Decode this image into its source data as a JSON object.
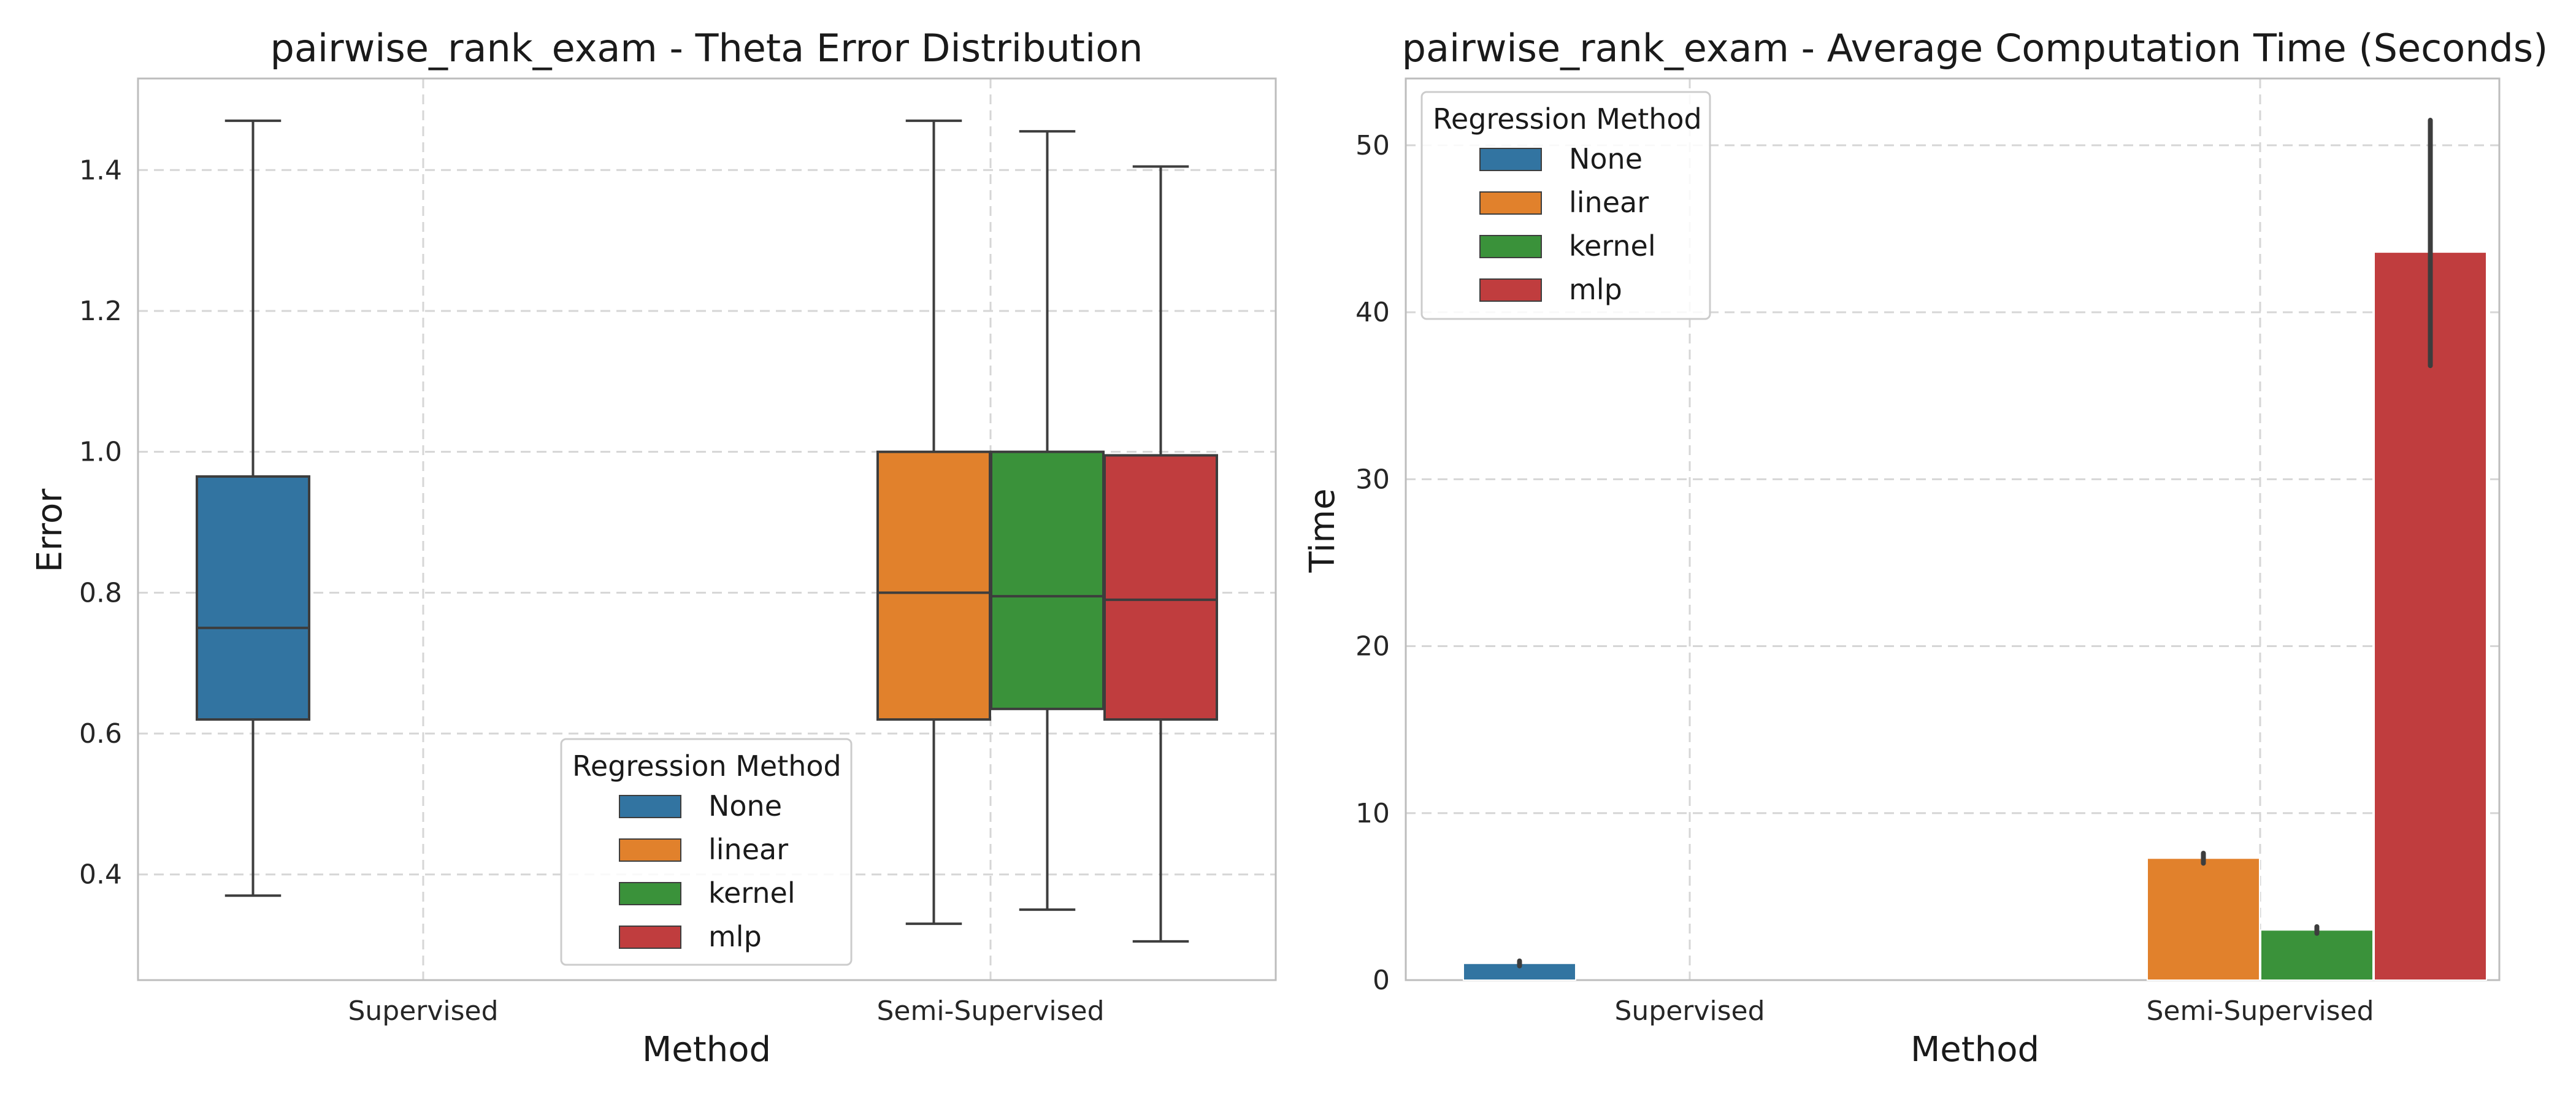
{
  "chart_data": [
    {
      "type": "box",
      "title": "pairwise_rank_exam - Theta Error Distribution",
      "xlabel": "Method",
      "ylabel": "Error",
      "ylim": [
        0.25,
        1.53
      ],
      "yticks": [
        "0.4",
        "0.6",
        "0.8",
        "1.0",
        "1.2",
        "1.4"
      ],
      "categories": [
        "Supervised",
        "Semi-Supervised"
      ],
      "grid": true,
      "legend": {
        "title": "Regression Method",
        "placement": "lower-center",
        "entries": [
          "None",
          "linear",
          "kernel",
          "mlp"
        ]
      },
      "series": [
        {
          "name": "None",
          "color": "#3274a1",
          "values": [
            {
              "category": "Supervised",
              "min": 0.37,
              "q1": 0.62,
              "median": 0.75,
              "q3": 0.965,
              "max": 1.47
            }
          ]
        },
        {
          "name": "linear",
          "color": "#e1812c",
          "values": [
            {
              "category": "Semi-Supervised",
              "min": 0.33,
              "q1": 0.62,
              "median": 0.8,
              "q3": 1.0,
              "max": 1.47
            }
          ]
        },
        {
          "name": "kernel",
          "color": "#3a923a",
          "values": [
            {
              "category": "Semi-Supervised",
              "min": 0.35,
              "q1": 0.635,
              "median": 0.795,
              "q3": 1.0,
              "max": 1.455
            }
          ]
        },
        {
          "name": "mlp",
          "color": "#c03d3e",
          "values": [
            {
              "category": "Semi-Supervised",
              "min": 0.305,
              "q1": 0.62,
              "median": 0.79,
              "q3": 0.995,
              "max": 1.405
            }
          ]
        }
      ]
    },
    {
      "type": "bar",
      "title": "pairwise_rank_exam - Average Computation Time (Seconds)",
      "xlabel": "Method",
      "ylabel": "Time",
      "ylim": [
        0,
        54
      ],
      "yticks": [
        "0",
        "10",
        "20",
        "30",
        "40",
        "50"
      ],
      "categories": [
        "Supervised",
        "Semi-Supervised"
      ],
      "grid": true,
      "legend": {
        "title": "Regression Method",
        "placement": "upper-left",
        "entries": [
          "None",
          "linear",
          "kernel",
          "mlp"
        ]
      },
      "series": [
        {
          "name": "None",
          "color": "#3274a1",
          "values": [
            {
              "category": "Supervised",
              "value": 1.0,
              "err_low": 0.85,
              "err_high": 1.15
            }
          ]
        },
        {
          "name": "linear",
          "color": "#e1812c",
          "values": [
            {
              "category": "Semi-Supervised",
              "value": 7.3,
              "err_low": 7.0,
              "err_high": 7.6
            }
          ]
        },
        {
          "name": "kernel",
          "color": "#3a923a",
          "values": [
            {
              "category": "Semi-Supervised",
              "value": 3.0,
              "err_low": 2.8,
              "err_high": 3.2
            }
          ]
        },
        {
          "name": "mlp",
          "color": "#c03d3e",
          "values": [
            {
              "category": "Semi-Supervised",
              "value": 43.6,
              "err_low": 36.8,
              "err_high": 51.5
            }
          ]
        }
      ]
    }
  ]
}
